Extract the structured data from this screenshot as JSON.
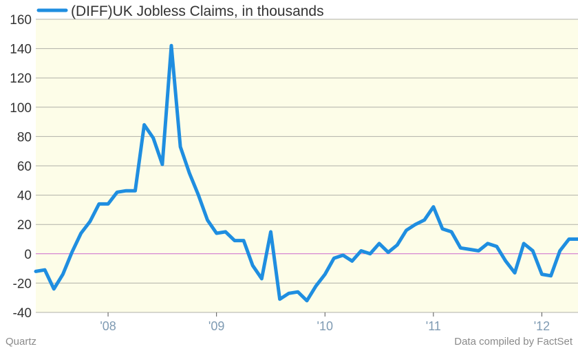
{
  "chart_data": {
    "type": "line",
    "title": "",
    "xlabel": "",
    "ylabel": "",
    "ylim": [
      -40,
      160
    ],
    "yticks": [
      -40,
      -20,
      0,
      20,
      40,
      60,
      80,
      100,
      120,
      140,
      160
    ],
    "xlim": [
      "2007-05",
      "2012-05"
    ],
    "xticks": [
      {
        "label": "'08",
        "date": "2008-01"
      },
      {
        "label": "'09",
        "date": "2009-01"
      },
      {
        "label": "'10",
        "date": "2010-01"
      },
      {
        "label": "'11",
        "date": "2011-01"
      },
      {
        "label": "'12",
        "date": "2012-01"
      }
    ],
    "grid": true,
    "zero_line": true,
    "legend_position": "top-left",
    "series": [
      {
        "name": "(DIFF)UK Jobless Claims, in thousands",
        "color": "#1f8ee0",
        "x": [
          "2007-05",
          "2007-06",
          "2007-07",
          "2007-08",
          "2007-09",
          "2007-10",
          "2007-11",
          "2007-12",
          "2008-01",
          "2008-02",
          "2008-03",
          "2008-04",
          "2008-05",
          "2008-06",
          "2008-07",
          "2008-08",
          "2008-09",
          "2008-10",
          "2008-11",
          "2008-12",
          "2009-01",
          "2009-02",
          "2009-03",
          "2009-04",
          "2009-05",
          "2009-06",
          "2009-07",
          "2009-08",
          "2009-09",
          "2009-10",
          "2009-11",
          "2009-12",
          "2010-01",
          "2010-02",
          "2010-03",
          "2010-04",
          "2010-05",
          "2010-06",
          "2010-07",
          "2010-08",
          "2010-09",
          "2010-10",
          "2010-11",
          "2010-12",
          "2011-01",
          "2011-02",
          "2011-03",
          "2011-04",
          "2011-05",
          "2011-06",
          "2011-07",
          "2011-08",
          "2011-09",
          "2011-10",
          "2011-11",
          "2011-12",
          "2012-01",
          "2012-02",
          "2012-03",
          "2012-04",
          "2012-05"
        ],
        "values": [
          -12,
          -11,
          -24,
          -14,
          1,
          14,
          22,
          34,
          34,
          42,
          43,
          43,
          88,
          79,
          61,
          142,
          73,
          55,
          40,
          23,
          14,
          15,
          9,
          9,
          -8,
          -17,
          15,
          -31,
          -27,
          -26,
          -32,
          -22,
          -14,
          -3,
          -1,
          -5,
          2,
          0,
          7,
          1,
          6,
          16,
          20,
          23,
          32,
          17,
          15,
          4,
          3,
          2,
          7,
          5,
          -5,
          -13,
          7,
          2,
          -14,
          -15,
          2,
          10,
          10
        ]
      }
    ],
    "footer_left": "Quartz",
    "footer_right": "Data compiled by FactSet",
    "colors": {
      "plot_bg": "#fdfde8",
      "grid": "#b0b0a8",
      "zero_line": "#cc66cc",
      "axis": "#555555"
    }
  }
}
